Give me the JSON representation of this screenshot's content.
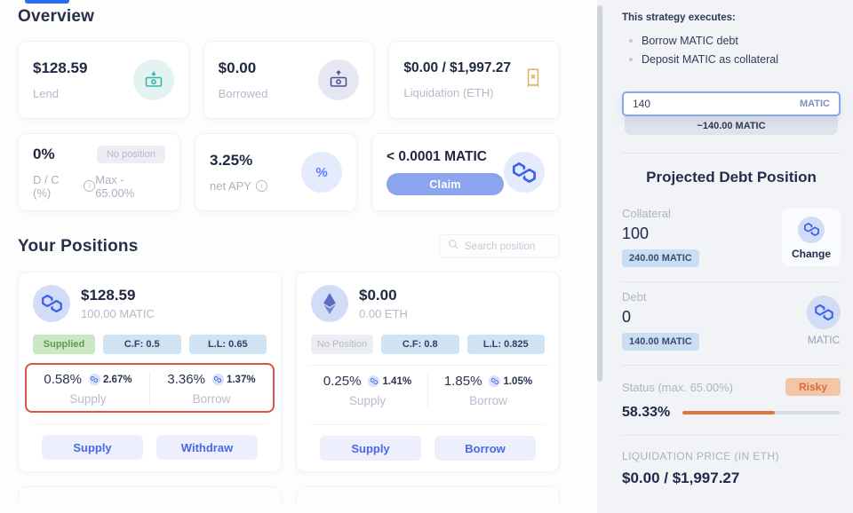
{
  "overview": {
    "title": "Overview",
    "cards": [
      {
        "value": "$128.59",
        "label": "Lend",
        "icon": "money-in-icon"
      },
      {
        "value": "$0.00",
        "label": "Borrowed",
        "icon": "money-out-icon"
      },
      {
        "value": "$0.00 / $1,997.27",
        "label": "Liquidation (ETH)",
        "icon": "receipt-icon"
      }
    ],
    "stats": [
      {
        "value": "0%",
        "badge": "No position",
        "label": "D / C (%)",
        "sub": "Max - 65.00%"
      },
      {
        "value": "3.25%",
        "label": "net APY",
        "icon": "percent-icon"
      },
      {
        "value": "< 0.0001 MATIC",
        "button": "Claim",
        "icon": "matic-icon"
      }
    ]
  },
  "positions": {
    "title": "Your Positions",
    "search_placeholder": "Search position",
    "cards": [
      {
        "token": "MATIC",
        "usd_value": "$128.59",
        "balance": "100.00 MATIC",
        "status_badge": "Supplied",
        "cf_badge": "C.F: 0.5",
        "ll_badge": "L.L: 0.65",
        "supply_apy": "0.58%",
        "supply_reward": "2.67%",
        "supply_label": "Supply",
        "borrow_apy": "3.36%",
        "borrow_reward": "1.37%",
        "borrow_label": "Borrow",
        "buttons": [
          "Supply",
          "Withdraw"
        ],
        "highlighted": true
      },
      {
        "token": "ETH",
        "usd_value": "$0.00",
        "balance": "0.00 ETH",
        "status_badge": "No Position",
        "cf_badge": "C.F: 0.8",
        "ll_badge": "L.L: 0.825",
        "supply_apy": "0.25%",
        "supply_reward": "1.41%",
        "supply_label": "Supply",
        "borrow_apy": "1.85%",
        "borrow_reward": "1.05%",
        "borrow_label": "Borrow",
        "buttons": [
          "Supply",
          "Borrow"
        ],
        "highlighted": false
      }
    ]
  },
  "sidebar": {
    "strategy_title": "This strategy executes:",
    "strategy_items": [
      "Borrow MATIC debt",
      "Deposit MATIC as collateral"
    ],
    "amount_input": {
      "value": "140",
      "unit": "MATIC",
      "approx": "~140.00 MATIC"
    },
    "projection_title": "Projected Debt Position",
    "collateral": {
      "label": "Collateral",
      "value": "100",
      "badge": "240.00 MATIC",
      "action": "Change",
      "icon": "matic-icon"
    },
    "debt": {
      "label": "Debt",
      "value": "0",
      "badge": "140.00 MATIC",
      "token": "MATIC",
      "icon": "matic-icon"
    },
    "status": {
      "label": "Status (max. 65.00%)",
      "badge": "Risky",
      "value": "58.33%",
      "progress_pct": 58.33
    },
    "liquidation": {
      "label": "LIQUIDATION PRICE (IN ETH)",
      "value": "$0.00 / $1,997.27"
    }
  },
  "colors": {
    "accent_blue": "#3a63e8",
    "risky_orange": "#e0763f",
    "highlight_red": "#dc5244",
    "supplied_green": "#5d9c55",
    "badge_blue": "#cfe3f5",
    "sidebar_bg": "#f1f3f7"
  }
}
